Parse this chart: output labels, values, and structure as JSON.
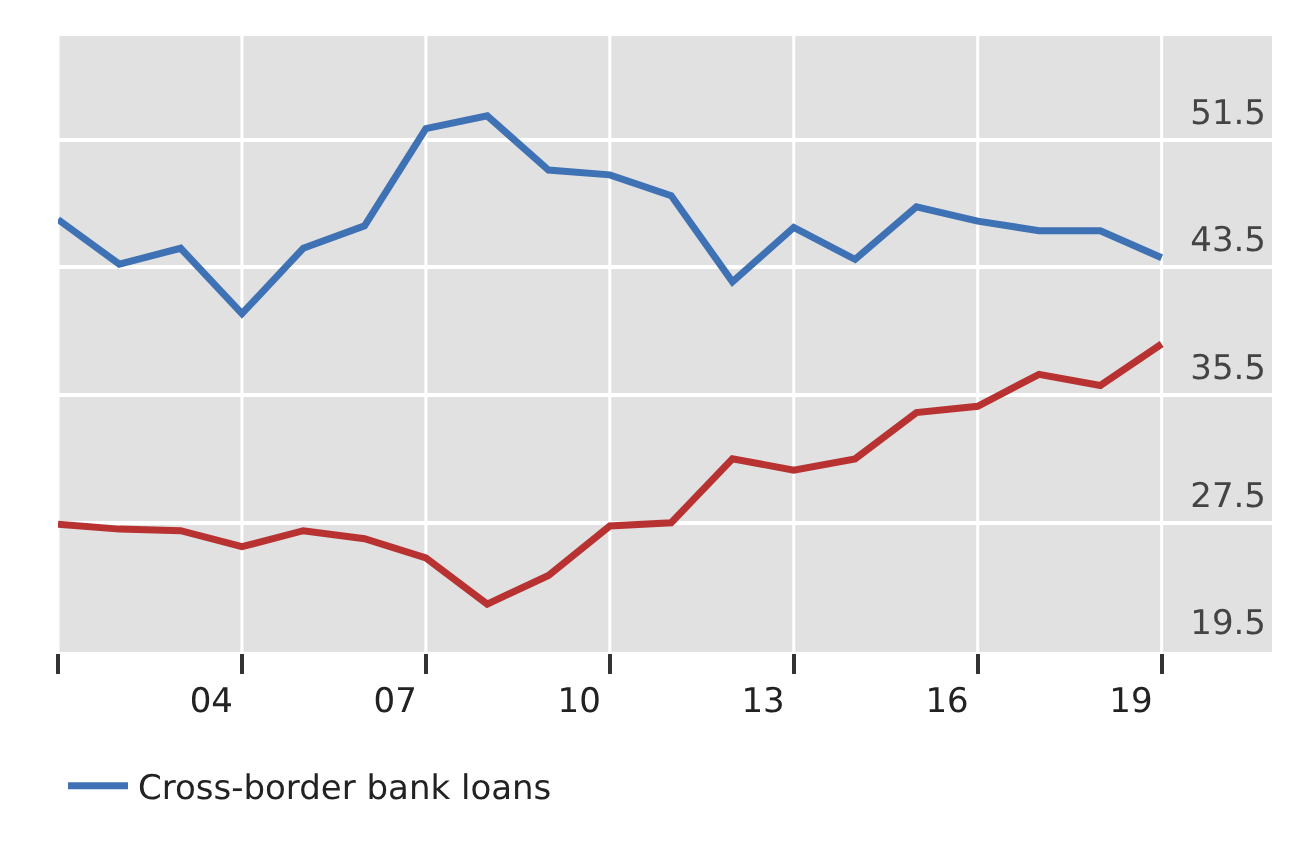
{
  "chart_data": {
    "type": "line",
    "x": [
      1.5,
      2.5,
      3.5,
      4.5,
      5.5,
      6.5,
      7.5,
      8.5,
      9.5,
      10.5,
      11.5,
      12.5,
      13.5,
      14.5,
      15.5,
      16.5,
      17.5,
      18.5,
      19.5
    ],
    "series": [
      {
        "name": "Cross-border bank loans",
        "color": "#3f72b5",
        "values": [
          46.5,
          43.7,
          44.7,
          40.6,
          44.7,
          46.1,
          52.2,
          53.0,
          49.6,
          49.3,
          48.0,
          42.6,
          46.0,
          44.0,
          47.3,
          46.4,
          45.8,
          45.8,
          44.1
        ]
      },
      {
        "color": "#b83232",
        "values": [
          27.4,
          27.1,
          27.0,
          26.0,
          27.0,
          26.5,
          25.3,
          22.4,
          24.2,
          27.3,
          27.5,
          31.5,
          30.8,
          31.5,
          34.4,
          34.8,
          36.8,
          36.1,
          38.7
        ]
      }
    ],
    "xlim": [
      1.5,
      21.3
    ],
    "xticks": [
      {
        "value": 1.5,
        "label": null
      },
      {
        "value": 4,
        "label": "04"
      },
      {
        "value": 4.5,
        "label": null
      },
      {
        "value": 7,
        "label": "07"
      },
      {
        "value": 7.5,
        "label": null
      },
      {
        "value": 10,
        "label": "10"
      },
      {
        "value": 10.5,
        "label": null
      },
      {
        "value": 13,
        "label": "13"
      },
      {
        "value": 13.5,
        "label": null
      },
      {
        "value": 16,
        "label": "16"
      },
      {
        "value": 16.5,
        "label": null
      },
      {
        "value": 19,
        "label": "19"
      },
      {
        "value": 19.5,
        "label": null
      }
    ],
    "ylim": [
      19.4,
      58
    ],
    "yticks": [
      19.5,
      27.5,
      35.5,
      43.5,
      51.5
    ],
    "grid": true,
    "legend": "bottom",
    "marker": "none",
    "line_style": "solid"
  }
}
